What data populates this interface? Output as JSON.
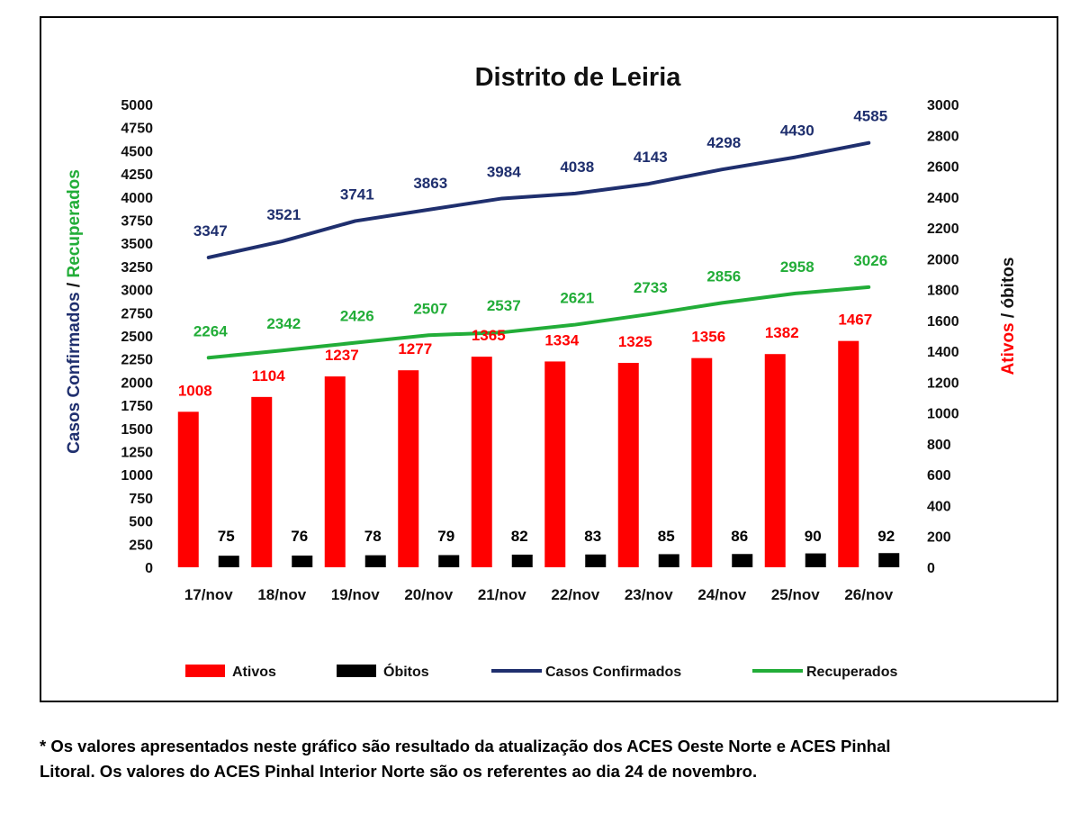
{
  "chart_data": {
    "type": "bar",
    "title": "Distrito de Leiria",
    "categories": [
      "17/nov",
      "18/nov",
      "19/nov",
      "20/nov",
      "21/nov",
      "22/nov",
      "23/nov",
      "24/nov",
      "25/nov",
      "26/nov"
    ],
    "left_axis": {
      "label_part1": "Casos Confirmados",
      "label_sep": " / ",
      "label_part2": "Recuperados",
      "range": [
        0,
        5000
      ],
      "ticks": [
        0,
        250,
        500,
        750,
        1000,
        1250,
        1500,
        1750,
        2000,
        2250,
        2500,
        2750,
        3000,
        3250,
        3500,
        3750,
        4000,
        4250,
        4500,
        4750,
        5000
      ]
    },
    "right_axis": {
      "label_part1": "Ativos",
      "label_sep": " / ",
      "label_part2": "óbitos",
      "range": [
        0,
        3000
      ],
      "ticks": [
        0,
        200,
        400,
        600,
        800,
        1000,
        1200,
        1400,
        1600,
        1800,
        2000,
        2200,
        2400,
        2600,
        2800,
        3000
      ]
    },
    "series": [
      {
        "name": "Ativos",
        "kind": "bar",
        "axis": "right",
        "color": "#ff0000",
        "label_color": "#ff0000",
        "values": [
          1008,
          1104,
          1237,
          1277,
          1365,
          1334,
          1325,
          1356,
          1382,
          1467
        ]
      },
      {
        "name": "Óbitos",
        "kind": "bar",
        "axis": "right",
        "color": "#000000",
        "label_color": "#000000",
        "values": [
          75,
          76,
          78,
          79,
          82,
          83,
          85,
          86,
          90,
          92
        ]
      },
      {
        "name": "Casos Confirmados",
        "kind": "line",
        "axis": "left",
        "color": "#1f2f6e",
        "label_color": "#1f2f6e",
        "values": [
          3347,
          3521,
          3741,
          3863,
          3984,
          4038,
          4143,
          4298,
          4430,
          4585
        ]
      },
      {
        "name": "Recuperados",
        "kind": "line",
        "axis": "left",
        "color": "#22ad38",
        "label_color": "#22ad38",
        "values": [
          2264,
          2342,
          2426,
          2507,
          2537,
          2621,
          2733,
          2856,
          2958,
          3026
        ]
      }
    ],
    "legend_position": "bottom",
    "grid": false
  },
  "footnote": {
    "line1": "* Os valores apresentados neste gráfico são resultado da atualização dos ACES Oeste Norte e ACES Pinhal",
    "line2": "Litoral. Os valores do ACES Pinhal Interior Norte são os referentes ao dia 24 de novembro."
  }
}
